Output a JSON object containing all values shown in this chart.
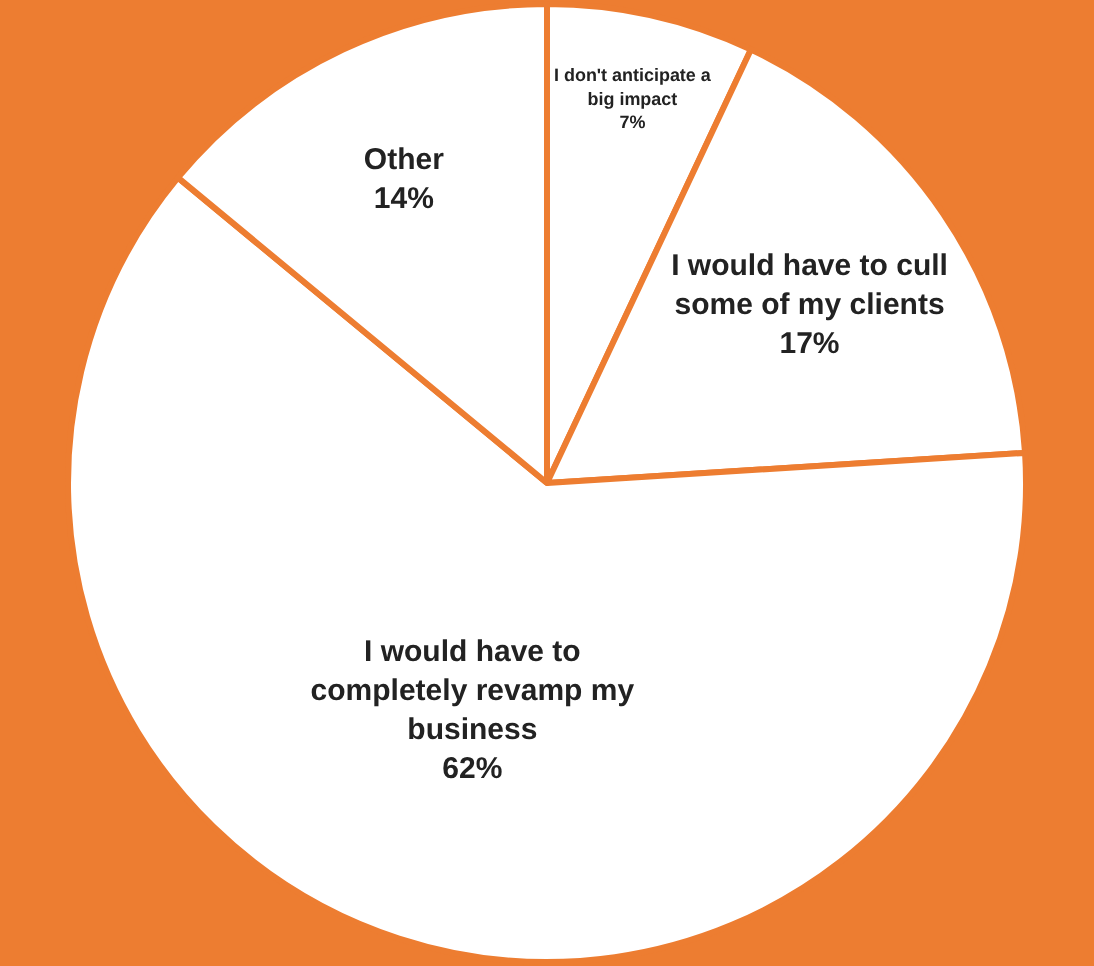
{
  "chart_data": {
    "type": "pie",
    "categories": [
      "I don't anticipate a big impact",
      "I would have to cull some of my clients",
      "I would have to completely revamp my business",
      "Other"
    ],
    "values": [
      7,
      17,
      62,
      14
    ],
    "value_labels": [
      "7%",
      "17%",
      "62%",
      "14%"
    ],
    "colors": [
      "#ffffff",
      "#ffffff",
      "#ffffff",
      "#ffffff"
    ],
    "legend": false
  }
}
